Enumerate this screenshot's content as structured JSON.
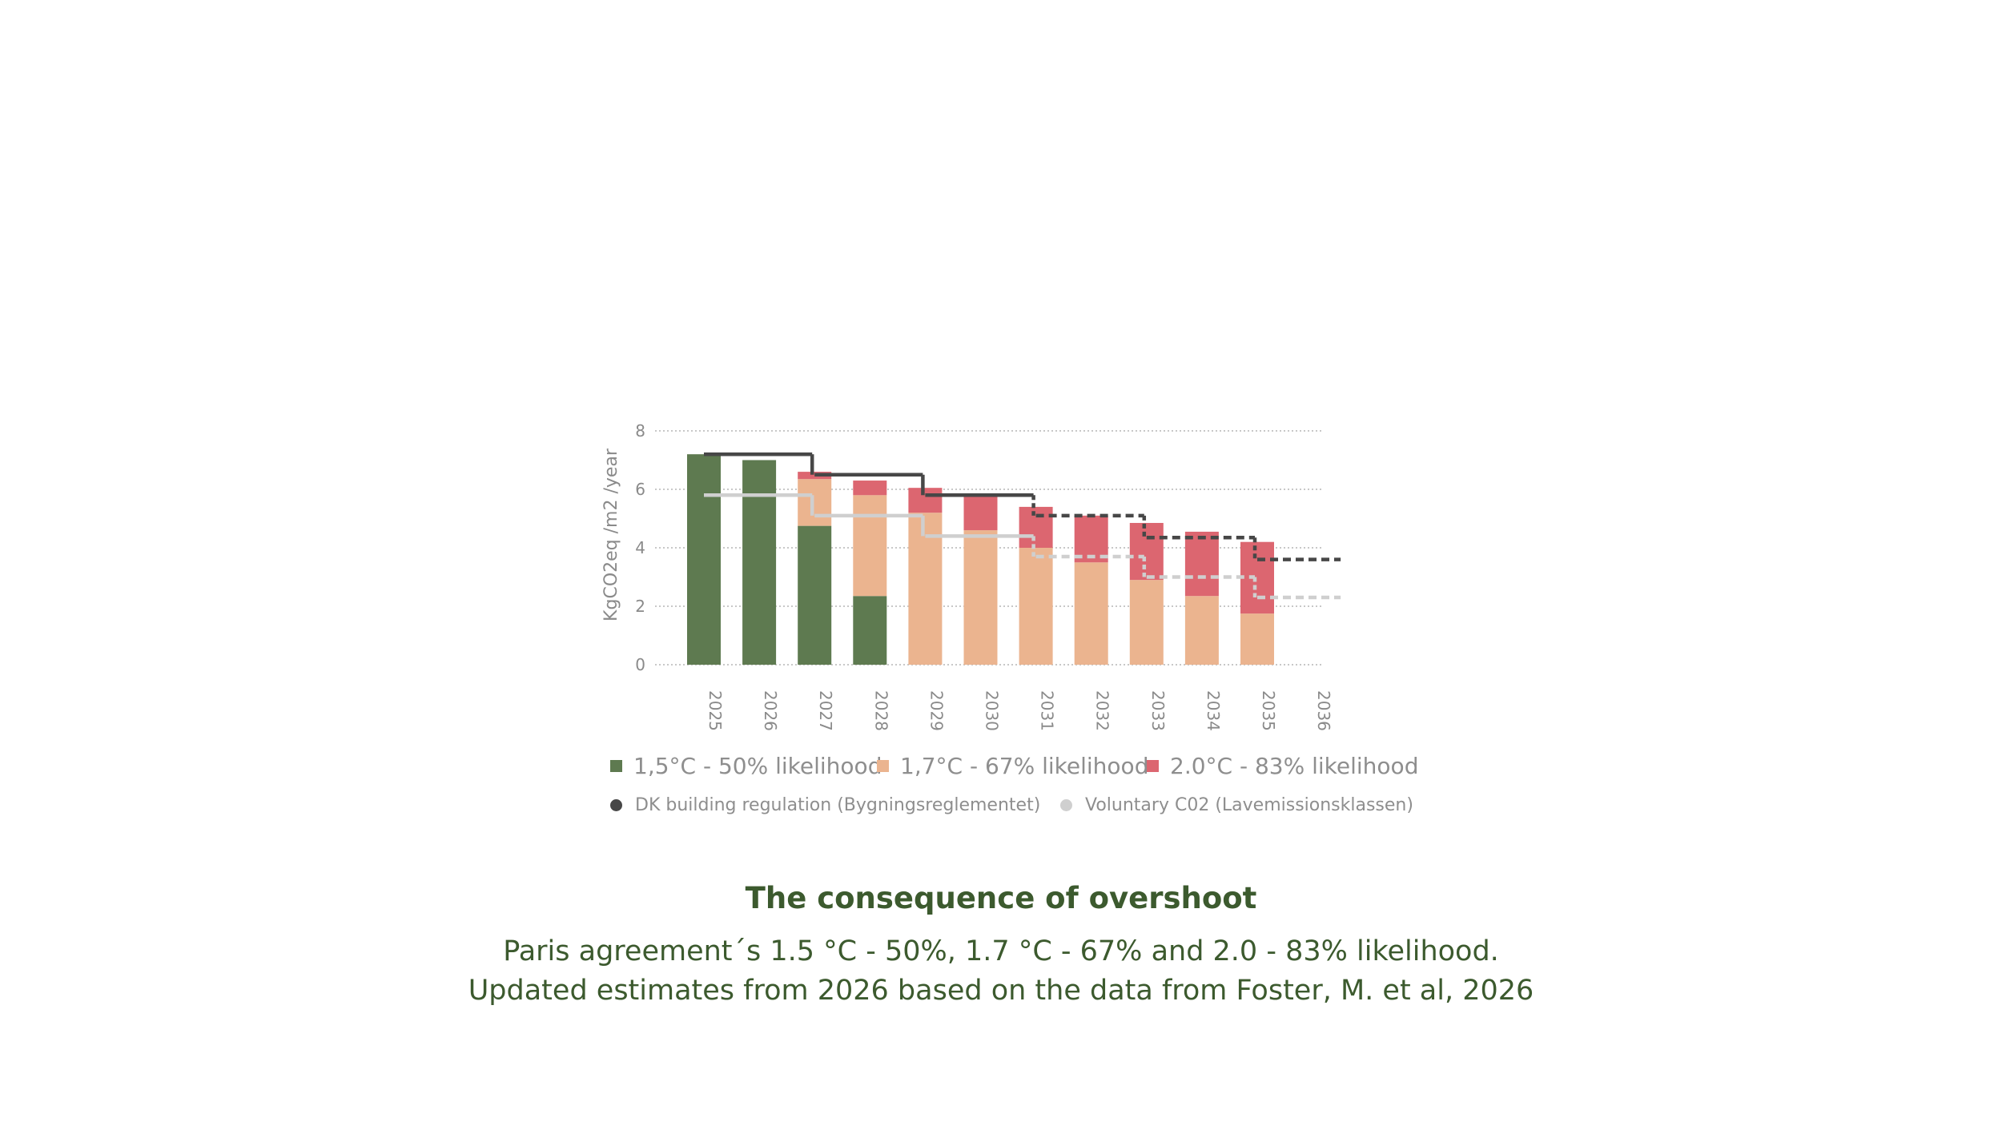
{
  "chart_data": {
    "type": "bar",
    "stacked": true,
    "ylabel": "KgCO2eq /m2 /year",
    "ylim": [
      0,
      8
    ],
    "yticks": [
      "0",
      "2",
      "4",
      "6",
      "8"
    ],
    "grid": true,
    "categories": [
      "2025",
      "2026",
      "2027",
      "2028",
      "2029",
      "2030",
      "2031",
      "2032",
      "2033",
      "2034",
      "2035",
      "2036"
    ],
    "series": [
      {
        "name": "1,5°C - 50% likelihood",
        "color": "#5e7a50",
        "values": [
          7.2,
          7.0,
          4.75,
          2.35,
          0,
          0,
          0,
          0,
          0,
          0,
          0,
          0
        ]
      },
      {
        "name": "1,7°C - 67% likelihood",
        "color": "#ebb48f",
        "values": [
          0,
          0,
          1.6,
          3.45,
          5.2,
          4.6,
          4.0,
          3.5,
          2.9,
          2.35,
          1.75,
          0
        ]
      },
      {
        "name": "2.0°C - 83% likelihood",
        "color": "#dc6670",
        "values": [
          0,
          0,
          0.25,
          0.5,
          0.85,
          1.15,
          1.4,
          1.6,
          1.95,
          2.2,
          2.45,
          0
        ]
      }
    ],
    "lines": [
      {
        "name": "DK building regulation (Bygningsreglementet)",
        "color": "#474747",
        "steps": [
          {
            "from": "2025",
            "to": "2027",
            "value": 7.2,
            "style": "solid"
          },
          {
            "from": "2027",
            "to": "2029",
            "value": 6.5,
            "style": "solid"
          },
          {
            "from": "2029",
            "to": "2031",
            "value": 5.8,
            "style": "solid"
          },
          {
            "from": "2031",
            "to": "2033",
            "value": 5.1,
            "style": "dashed"
          },
          {
            "from": "2033",
            "to": "2035",
            "value": 4.35,
            "style": "dashed"
          },
          {
            "from": "2035",
            "to": "2036",
            "value": 3.6,
            "style": "dashed"
          }
        ]
      },
      {
        "name": "Voluntary C02 (Lavemissionsklassen)",
        "color": "#cfcfcf",
        "steps": [
          {
            "from": "2025",
            "to": "2027",
            "value": 5.8,
            "style": "solid"
          },
          {
            "from": "2027",
            "to": "2029",
            "value": 5.1,
            "style": "solid"
          },
          {
            "from": "2029",
            "to": "2031",
            "value": 4.4,
            "style": "solid"
          },
          {
            "from": "2031",
            "to": "2033",
            "value": 3.7,
            "style": "dashed"
          },
          {
            "from": "2033",
            "to": "2035",
            "value": 3.0,
            "style": "dashed"
          },
          {
            "from": "2035",
            "to": "2036",
            "value": 2.3,
            "style": "dashed"
          }
        ]
      }
    ],
    "legend_placement": "bottom"
  },
  "legend": {
    "bars": [
      "1,5°C - 50% likelihood",
      "1,7°C - 67% likelihood",
      "2.0°C - 83% likelihood"
    ],
    "lines": [
      "DK building regulation (Bygningsreglementet)",
      "Voluntary C02 (Lavemissionsklassen)"
    ]
  },
  "caption": {
    "title": "The consequence of overshoot",
    "line1": "Paris agreement´s 1.5 °C - 50%, 1.7 °C - 67% and 2.0 - 83% likelihood.",
    "line2": "Updated estimates from 2026 based on the data from Foster, M. et al, 2026"
  }
}
